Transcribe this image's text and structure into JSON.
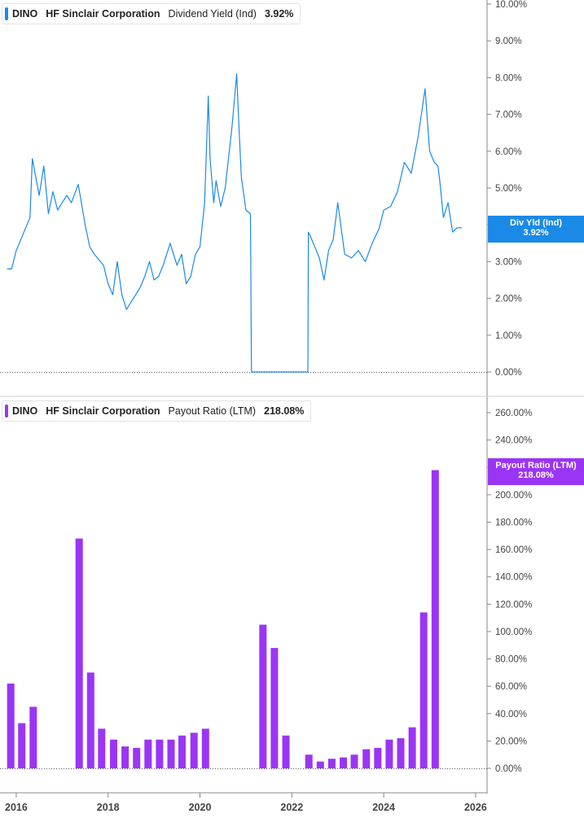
{
  "top_legend": {
    "ticker": "DINO",
    "company": "HF Sinclair Corporation",
    "metric": "Dividend Yield (Ind)",
    "value": "3.92%"
  },
  "top_tag": {
    "label": "Div Yld (Ind)",
    "value": "3.92%"
  },
  "bottom_legend": {
    "ticker": "DINO",
    "company": "HF Sinclair Corporation",
    "metric": "Payout Ratio (LTM)",
    "value": "218.08%"
  },
  "bottom_tag": {
    "label": "Payout Ratio (LTM)",
    "value": "218.08%"
  },
  "colors": {
    "yield_line": "#1a8ae6",
    "payout_bar": "#9b35f5",
    "grid": "#555555"
  },
  "chart_data": [
    {
      "type": "line",
      "name": "Dividend Yield (Ind)",
      "ylim": [
        0,
        10
      ],
      "yticks": [
        "10.00%",
        "9.00%",
        "8.00%",
        "7.00%",
        "6.00%",
        "5.00%",
        "4.00%",
        "3.00%",
        "2.00%",
        "1.00%",
        "0.00%"
      ],
      "x": [
        2015.8,
        2015.9,
        2016.0,
        2016.1,
        2016.3,
        2016.35,
        2016.5,
        2016.6,
        2016.7,
        2016.8,
        2016.9,
        2017.0,
        2017.1,
        2017.2,
        2017.35,
        2017.5,
        2017.6,
        2017.7,
        2017.9,
        2018.0,
        2018.1,
        2018.2,
        2018.3,
        2018.4,
        2018.5,
        2018.6,
        2018.7,
        2018.8,
        2018.9,
        2019.0,
        2019.1,
        2019.2,
        2019.35,
        2019.5,
        2019.6,
        2019.7,
        2019.8,
        2019.9,
        2020.0,
        2020.1,
        2020.18,
        2020.22,
        2020.3,
        2020.35,
        2020.45,
        2020.55,
        2020.7,
        2020.8,
        2020.85,
        2020.9,
        2021.0,
        2021.1,
        2021.12,
        2021.2,
        2021.5,
        2021.8,
        2022.0,
        2022.2,
        2022.35,
        2022.36,
        2022.4,
        2022.5,
        2022.6,
        2022.7,
        2022.8,
        2022.9,
        2023.0,
        2023.15,
        2023.3,
        2023.45,
        2023.6,
        2023.75,
        2023.9,
        2024.0,
        2024.15,
        2024.3,
        2024.45,
        2024.6,
        2024.75,
        2024.9,
        2025.0,
        2025.1,
        2025.18,
        2025.22,
        2025.3,
        2025.4,
        2025.5,
        2025.6,
        2025.7
      ],
      "values": [
        2.8,
        2.8,
        3.3,
        3.6,
        4.2,
        5.8,
        4.8,
        5.6,
        4.3,
        4.9,
        4.4,
        4.6,
        4.8,
        4.6,
        5.1,
        4.0,
        3.4,
        3.2,
        2.9,
        2.4,
        2.1,
        3.0,
        2.1,
        1.7,
        1.9,
        2.1,
        2.3,
        2.6,
        3.0,
        2.5,
        2.6,
        2.9,
        3.5,
        2.9,
        3.2,
        2.4,
        2.6,
        3.2,
        3.4,
        4.6,
        7.5,
        5.8,
        4.6,
        5.2,
        4.5,
        5.0,
        6.7,
        8.1,
        6.6,
        5.3,
        4.4,
        4.3,
        0.0,
        0.0,
        0.0,
        0.0,
        0.0,
        0.0,
        0.0,
        3.8,
        3.7,
        3.4,
        3.1,
        2.5,
        3.3,
        3.6,
        4.6,
        3.2,
        3.1,
        3.3,
        3.0,
        3.5,
        3.9,
        4.4,
        4.5,
        4.9,
        5.7,
        5.4,
        6.4,
        7.7,
        6.0,
        5.7,
        5.6,
        5.2,
        4.2,
        4.6,
        3.8,
        3.92,
        3.92
      ]
    },
    {
      "type": "bar",
      "name": "Payout Ratio (LTM)",
      "ylim": [
        0,
        260
      ],
      "yticks": [
        "260.00%",
        "240.00%",
        "220.00%",
        "200.00%",
        "180.00%",
        "160.00%",
        "140.00%",
        "120.00%",
        "100.00%",
        "80.00%",
        "60.00%",
        "40.00%",
        "20.00%",
        "0.00%"
      ],
      "x": [
        2015.88,
        2016.12,
        2016.37,
        2017.37,
        2017.62,
        2017.86,
        2018.12,
        2018.37,
        2018.62,
        2018.87,
        2019.12,
        2019.37,
        2019.61,
        2019.87,
        2020.12,
        2021.37,
        2021.62,
        2021.87,
        2022.37,
        2022.62,
        2022.87,
        2023.12,
        2023.36,
        2023.62,
        2023.87,
        2024.12,
        2024.37,
        2024.62,
        2024.87,
        2025.12
      ],
      "values": [
        62,
        33,
        45,
        168,
        70,
        29,
        21,
        16,
        15,
        21,
        21,
        21,
        24,
        26,
        29,
        105,
        88,
        24,
        10,
        5,
        7,
        8,
        10,
        14,
        15,
        21,
        22,
        30,
        114,
        218
      ]
    }
  ],
  "x_axis": {
    "min": 2015.7,
    "max": 2026.25,
    "ticks": [
      2016,
      2018,
      2020,
      2022,
      2024,
      2026
    ],
    "tick_labels": [
      "2016",
      "2018",
      "2020",
      "2022",
      "2024",
      "2026"
    ]
  }
}
